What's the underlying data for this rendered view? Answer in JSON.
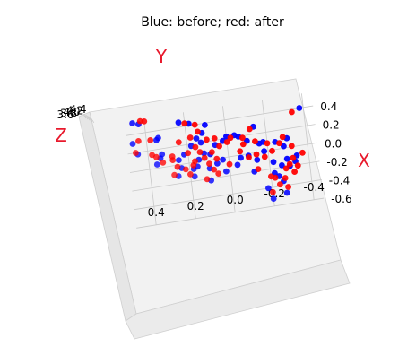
{
  "chart_data": {
    "type": "scatter",
    "projection": "3d",
    "title": "Blue: before; red: after",
    "axis_label_color": "#e8192c",
    "axes": {
      "x": {
        "label": "X",
        "ticks": [
          "-0.6",
          "-0.4",
          "-0.2",
          "0.0",
          "0.2",
          "0.4"
        ],
        "range": [
          -0.6,
          0.55
        ]
      },
      "y": {
        "label": "Y",
        "ticks": [
          "-0.4",
          "-0.2",
          "0.0",
          "0.2",
          "0.4"
        ],
        "range": [
          -0.45,
          0.5
        ]
      },
      "z": {
        "label": "Z",
        "ticks": [
          "3.6",
          "3.8",
          "4.0",
          "4.2",
          "4.4"
        ]
      }
    },
    "grid": true,
    "series": [
      {
        "color": "#0000ff",
        "points": [
          [
            -0.52,
            -0.2
          ],
          [
            -0.48,
            -0.27
          ],
          [
            -0.4,
            -0.18
          ],
          [
            -0.35,
            -0.26
          ],
          [
            -0.29,
            -0.24
          ],
          [
            -0.25,
            -0.22
          ],
          [
            -0.2,
            -0.3
          ],
          [
            -0.18,
            -0.26
          ],
          [
            -0.16,
            -0.33
          ],
          [
            -0.13,
            -0.22
          ],
          [
            -0.12,
            -0.29
          ],
          [
            -0.15,
            0.18
          ],
          [
            -0.05,
            0.16
          ],
          [
            0.02,
            0.15
          ],
          [
            0.06,
            0.09
          ],
          [
            0.08,
            0.12
          ],
          [
            0.05,
            0.25
          ],
          [
            0.04,
            0.36
          ],
          [
            -0.02,
            -0.1
          ],
          [
            0.0,
            -0.18
          ],
          [
            0.02,
            -0.28
          ],
          [
            -0.03,
            -0.06
          ],
          [
            -0.08,
            -0.14
          ],
          [
            -0.1,
            -0.04
          ],
          [
            -0.05,
            0.06
          ],
          [
            -0.02,
            0.03
          ],
          [
            -0.09,
            0.1
          ],
          [
            -0.07,
            0.18
          ],
          [
            -0.04,
            0.24
          ],
          [
            0.1,
            0.22
          ],
          [
            0.18,
            0.18
          ],
          [
            0.2,
            0.13
          ],
          [
            0.25,
            0.15
          ],
          [
            0.3,
            0.12
          ],
          [
            0.38,
            0.1
          ],
          [
            0.42,
            0.18
          ],
          [
            0.45,
            0.23
          ],
          [
            0.1,
            0.34
          ],
          [
            0.14,
            0.33
          ],
          [
            0.3,
            0.35
          ],
          [
            0.32,
            0.34
          ],
          [
            0.15,
            0.06
          ],
          [
            0.18,
            0.02
          ],
          [
            0.22,
            -0.04
          ],
          [
            0.14,
            -0.1
          ],
          [
            0.08,
            -0.24
          ],
          [
            0.1,
            -0.3
          ],
          [
            0.1,
            -0.18
          ],
          [
            -0.1,
            -0.34
          ],
          [
            0.22,
            0.0
          ],
          [
            -0.2,
            -0.12
          ],
          [
            -0.22,
            0.1
          ],
          [
            -0.15,
            0.02
          ],
          [
            0.2,
            -0.06
          ],
          [
            0.28,
            -0.14
          ],
          [
            0.4,
            -0.38
          ],
          [
            0.5,
            0.43
          ],
          [
            0.52,
            0.46
          ],
          [
            0.3,
            0.47
          ],
          [
            0.18,
            0.45
          ],
          [
            0.09,
            -0.16
          ],
          [
            -0.12,
            0.26
          ]
        ]
      },
      {
        "color": "#ff0000",
        "points": [
          [
            -0.45,
            -0.2
          ],
          [
            -0.42,
            -0.28
          ],
          [
            -0.38,
            -0.24
          ],
          [
            -0.32,
            -0.27
          ],
          [
            -0.3,
            -0.22
          ],
          [
            -0.27,
            -0.32
          ],
          [
            -0.22,
            -0.28
          ],
          [
            -0.21,
            -0.34
          ],
          [
            -0.18,
            -0.3
          ],
          [
            -0.12,
            -0.32
          ],
          [
            -0.12,
            0.2
          ],
          [
            -0.03,
            0.18
          ],
          [
            0.01,
            0.17
          ],
          [
            0.03,
            0.12
          ],
          [
            0.08,
            0.08
          ],
          [
            0.1,
            0.14
          ],
          [
            0.06,
            0.28
          ],
          [
            0.05,
            0.33
          ],
          [
            -0.02,
            -0.14
          ],
          [
            -0.01,
            -0.22
          ],
          [
            0.01,
            -0.32
          ],
          [
            -0.04,
            -0.1
          ],
          [
            -0.06,
            -0.18
          ],
          [
            -0.08,
            0.0
          ],
          [
            -0.04,
            0.1
          ],
          [
            0.0,
            0.06
          ],
          [
            -0.11,
            0.08
          ],
          [
            -0.06,
            0.22
          ],
          [
            0.1,
            0.28
          ],
          [
            0.11,
            0.2
          ],
          [
            0.16,
            0.16
          ],
          [
            0.22,
            0.1
          ],
          [
            0.27,
            0.18
          ],
          [
            0.32,
            0.14
          ],
          [
            0.4,
            0.15
          ],
          [
            0.43,
            0.2
          ],
          [
            0.12,
            0.36
          ],
          [
            0.15,
            0.38
          ],
          [
            0.31,
            0.38
          ],
          [
            0.13,
            0.04
          ],
          [
            0.16,
            0.0
          ],
          [
            0.2,
            -0.02
          ],
          [
            0.12,
            -0.14
          ],
          [
            0.06,
            -0.26
          ],
          [
            0.12,
            -0.28
          ],
          [
            0.08,
            -0.2
          ],
          [
            -0.08,
            -0.37
          ],
          [
            -0.18,
            -0.14
          ],
          [
            -0.2,
            0.12
          ],
          [
            -0.16,
            0.06
          ],
          [
            0.18,
            -0.08
          ],
          [
            0.26,
            -0.12
          ],
          [
            0.37,
            -0.34
          ],
          [
            0.52,
            0.4
          ],
          [
            0.53,
            0.42
          ],
          [
            0.32,
            0.44
          ],
          [
            0.2,
            0.46
          ],
          [
            0.11,
            -0.08
          ],
          [
            0.22,
            0.06
          ],
          [
            -0.1,
            0.28
          ],
          [
            -0.02,
            0.26
          ],
          [
            0.04,
            -0.06
          ],
          [
            -0.28,
            -0.2
          ],
          [
            0.24,
            0.24
          ]
        ]
      }
    ]
  }
}
